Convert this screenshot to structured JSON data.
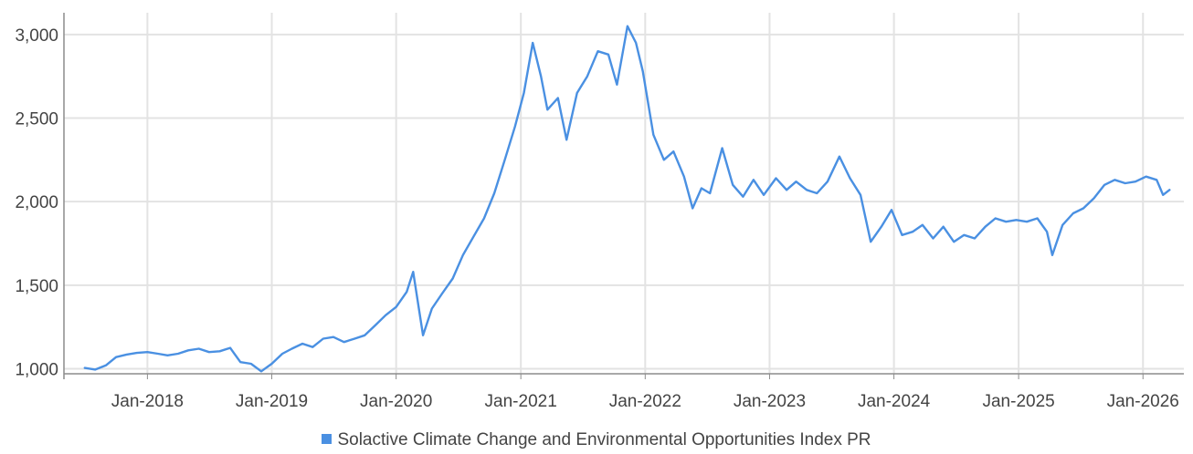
{
  "chart_data": {
    "type": "line",
    "title": "",
    "xlabel": "",
    "ylabel": "",
    "ylim": [
      970,
      3130
    ],
    "y_ticks": [
      {
        "value": 1000,
        "label": "1,000"
      },
      {
        "value": 1500,
        "label": "1,500"
      },
      {
        "value": 2000,
        "label": "2,000"
      },
      {
        "value": 2500,
        "label": "2,500"
      },
      {
        "value": 3000,
        "label": "3,000"
      }
    ],
    "x_ticks": [
      "Jan-2018",
      "Jan-2019",
      "Jan-2020",
      "Jan-2021",
      "Jan-2022",
      "Jan-2023",
      "Jan-2024",
      "Jan-2025",
      "Jan-2026"
    ],
    "x_range": [
      "2017-05-01",
      "2026-05-01"
    ],
    "grid": true,
    "legend": "bottom",
    "series": [
      {
        "name": "Solactive Climate Change and Environmental Opportunities Index PR",
        "color": "#4a90e2",
        "points": [
          [
            "2017-07-01",
            1005
          ],
          [
            "2017-08-01",
            995
          ],
          [
            "2017-09-01",
            1020
          ],
          [
            "2017-10-01",
            1070
          ],
          [
            "2017-11-01",
            1085
          ],
          [
            "2017-12-01",
            1095
          ],
          [
            "2018-01-01",
            1100
          ],
          [
            "2018-02-01",
            1090
          ],
          [
            "2018-03-01",
            1080
          ],
          [
            "2018-04-01",
            1090
          ],
          [
            "2018-05-01",
            1110
          ],
          [
            "2018-06-01",
            1120
          ],
          [
            "2018-07-01",
            1100
          ],
          [
            "2018-08-01",
            1105
          ],
          [
            "2018-09-01",
            1125
          ],
          [
            "2018-10-01",
            1040
          ],
          [
            "2018-11-01",
            1030
          ],
          [
            "2018-12-01",
            985
          ],
          [
            "2019-01-01",
            1030
          ],
          [
            "2019-02-01",
            1090
          ],
          [
            "2019-03-01",
            1120
          ],
          [
            "2019-04-01",
            1150
          ],
          [
            "2019-05-01",
            1130
          ],
          [
            "2019-06-01",
            1180
          ],
          [
            "2019-07-01",
            1190
          ],
          [
            "2019-08-01",
            1160
          ],
          [
            "2019-09-01",
            1180
          ],
          [
            "2019-10-01",
            1200
          ],
          [
            "2019-11-01",
            1260
          ],
          [
            "2019-12-01",
            1320
          ],
          [
            "2020-01-01",
            1370
          ],
          [
            "2020-02-01",
            1460
          ],
          [
            "2020-02-20",
            1580
          ],
          [
            "2020-03-20",
            1200
          ],
          [
            "2020-04-15",
            1360
          ],
          [
            "2020-05-15",
            1450
          ],
          [
            "2020-06-15",
            1540
          ],
          [
            "2020-07-15",
            1680
          ],
          [
            "2020-08-15",
            1790
          ],
          [
            "2020-09-15",
            1900
          ],
          [
            "2020-10-15",
            2050
          ],
          [
            "2020-11-15",
            2250
          ],
          [
            "2020-12-15",
            2450
          ],
          [
            "2021-01-10",
            2650
          ],
          [
            "2021-02-05",
            2950
          ],
          [
            "2021-03-01",
            2750
          ],
          [
            "2021-03-20",
            2550
          ],
          [
            "2021-04-20",
            2620
          ],
          [
            "2021-05-15",
            2370
          ],
          [
            "2021-06-15",
            2650
          ],
          [
            "2021-07-15",
            2750
          ],
          [
            "2021-08-15",
            2900
          ],
          [
            "2021-09-15",
            2880
          ],
          [
            "2021-10-10",
            2700
          ],
          [
            "2021-11-10",
            3050
          ],
          [
            "2021-12-05",
            2950
          ],
          [
            "2021-12-25",
            2780
          ],
          [
            "2022-01-25",
            2400
          ],
          [
            "2022-02-25",
            2250
          ],
          [
            "2022-03-25",
            2300
          ],
          [
            "2022-04-25",
            2150
          ],
          [
            "2022-05-20",
            1960
          ],
          [
            "2022-06-15",
            2080
          ],
          [
            "2022-07-10",
            2050
          ],
          [
            "2022-08-15",
            2320
          ],
          [
            "2022-09-15",
            2100
          ],
          [
            "2022-10-15",
            2030
          ],
          [
            "2022-11-15",
            2130
          ],
          [
            "2022-12-15",
            2040
          ],
          [
            "2023-01-20",
            2140
          ],
          [
            "2023-02-20",
            2070
          ],
          [
            "2023-03-20",
            2120
          ],
          [
            "2023-04-20",
            2070
          ],
          [
            "2023-05-20",
            2050
          ],
          [
            "2023-06-20",
            2120
          ],
          [
            "2023-07-25",
            2270
          ],
          [
            "2023-08-25",
            2140
          ],
          [
            "2023-09-25",
            2040
          ],
          [
            "2023-10-25",
            1760
          ],
          [
            "2023-11-25",
            1850
          ],
          [
            "2023-12-25",
            1950
          ],
          [
            "2024-01-25",
            1800
          ],
          [
            "2024-02-25",
            1820
          ],
          [
            "2024-03-25",
            1860
          ],
          [
            "2024-04-25",
            1780
          ],
          [
            "2024-05-25",
            1850
          ],
          [
            "2024-06-25",
            1760
          ],
          [
            "2024-07-25",
            1800
          ],
          [
            "2024-08-25",
            1780
          ],
          [
            "2024-09-25",
            1850
          ],
          [
            "2024-10-25",
            1900
          ],
          [
            "2024-11-25",
            1880
          ],
          [
            "2024-12-25",
            1890
          ],
          [
            "2025-01-25",
            1880
          ],
          [
            "2025-02-25",
            1900
          ],
          [
            "2025-03-25",
            1820
          ],
          [
            "2025-04-10",
            1680
          ],
          [
            "2025-05-10",
            1860
          ],
          [
            "2025-06-10",
            1930
          ],
          [
            "2025-07-10",
            1960
          ],
          [
            "2025-08-10",
            2020
          ],
          [
            "2025-09-10",
            2100
          ],
          [
            "2025-10-10",
            2130
          ],
          [
            "2025-11-10",
            2110
          ],
          [
            "2025-12-10",
            2120
          ],
          [
            "2026-01-10",
            2150
          ],
          [
            "2026-02-10",
            2130
          ],
          [
            "2026-03-01",
            2040
          ],
          [
            "2026-03-20",
            2070
          ]
        ]
      }
    ]
  }
}
